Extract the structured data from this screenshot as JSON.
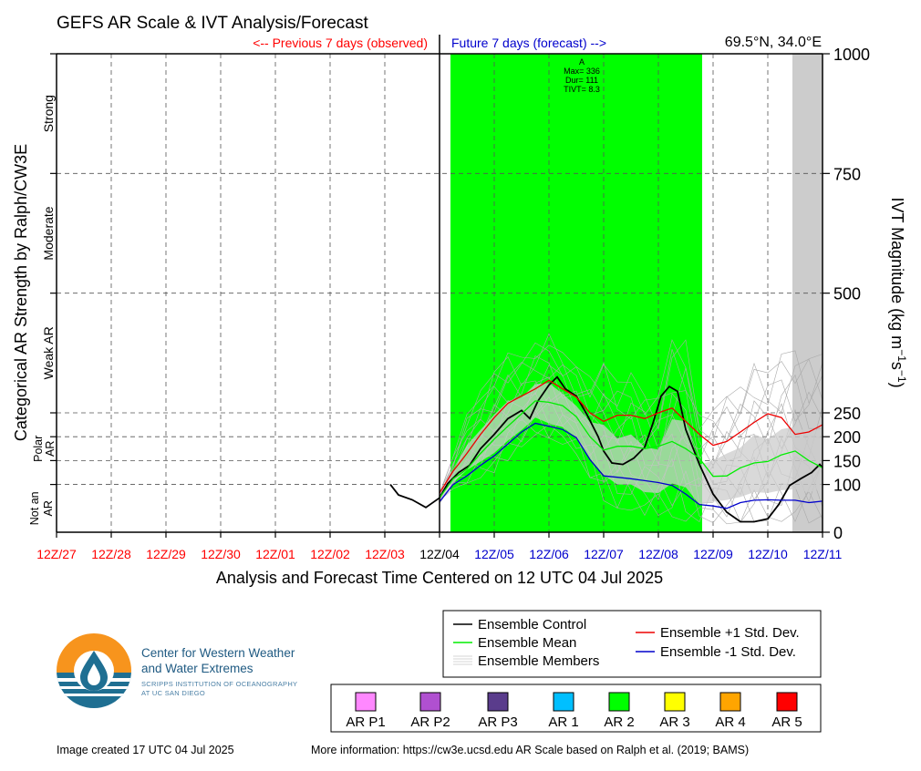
{
  "chart_data": {
    "type": "line",
    "title": "GEFS AR Scale & IVT Analysis/Forecast",
    "location": "69.5°N, 34.0°E",
    "previous_label": "<-- Previous 7 days (observed)",
    "future_label": "Future 7 days (forecast) -->",
    "xlabel": "Analysis and Forecast Time Centered on 12 UTC 04 Jul 2025",
    "ylabel_left": "Categorical AR Strength by Ralph/CW3E",
    "ylabel_right": "IVT Magnitude (kg m",
    "ylabel_right_sup1": "−1",
    "ylabel_right_mid": "s",
    "ylabel_right_sup2": "−1",
    "ylabel_right_end": ")",
    "x_ticks": [
      {
        "label": "12Z/27",
        "day": -7,
        "color": "#ff0000"
      },
      {
        "label": "12Z/28",
        "day": -6,
        "color": "#ff0000"
      },
      {
        "label": "12Z/29",
        "day": -5,
        "color": "#ff0000"
      },
      {
        "label": "12Z/30",
        "day": -4,
        "color": "#ff0000"
      },
      {
        "label": "12Z/01",
        "day": -3,
        "color": "#ff0000"
      },
      {
        "label": "12Z/02",
        "day": -2,
        "color": "#ff0000"
      },
      {
        "label": "12Z/03",
        "day": -1,
        "color": "#ff0000"
      },
      {
        "label": "12Z/04",
        "day": 0,
        "color": "#000000"
      },
      {
        "label": "12Z/05",
        "day": 1,
        "color": "#0000cc"
      },
      {
        "label": "12Z/06",
        "day": 2,
        "color": "#0000cc"
      },
      {
        "label": "12Z/07",
        "day": 3,
        "color": "#0000cc"
      },
      {
        "label": "12Z/08",
        "day": 4,
        "color": "#0000cc"
      },
      {
        "label": "12Z/09",
        "day": 5,
        "color": "#0000cc"
      },
      {
        "label": "12Z/10",
        "day": 6,
        "color": "#0000cc"
      },
      {
        "label": "12Z/11",
        "day": 7,
        "color": "#0000cc"
      }
    ],
    "xlim": [
      -7,
      7
    ],
    "ylim": [
      0,
      1000
    ],
    "y_ticks": [
      0,
      100,
      150,
      200,
      250,
      500,
      750,
      1000
    ],
    "categories": [
      {
        "label": "Strong",
        "y": 875
      },
      {
        "label": "Moderate",
        "y": 625
      },
      {
        "label": "Weak AR",
        "y": 375
      },
      {
        "label": "Polar AR",
        "y": 175
      },
      {
        "label": "Not an",
        "label2": "AR",
        "y": 50
      }
    ],
    "ar_events": [
      {
        "category": "AR 2",
        "start_day": 0.2,
        "end_day": 4.8,
        "color": "#00ff00"
      },
      {
        "category": "unshaded",
        "start_day": 6.45,
        "end_day": 7.0,
        "color": "#cccccc"
      }
    ],
    "ar_annotation": {
      "letter": "A",
      "max": "Max= 336",
      "dur": "Dur= 111",
      "tivt": "TIVT= 8.3"
    },
    "series": [
      {
        "name": "Ensemble Control",
        "color": "#000000",
        "x": [
          -0.9,
          -0.75,
          -0.5,
          -0.25,
          0.0,
          0.15,
          0.35,
          0.55,
          0.75,
          1.0,
          1.25,
          1.5,
          1.65,
          1.8,
          2.0,
          2.15,
          2.3,
          2.5,
          2.7,
          2.9,
          3.0,
          3.15,
          3.35,
          3.55,
          3.75,
          3.9,
          4.05,
          4.2,
          4.35,
          4.5,
          4.75,
          5.0,
          5.25,
          5.5,
          5.75,
          6.0,
          6.2,
          6.4,
          6.6,
          6.8,
          6.95,
          7.0
        ],
        "y": [
          100,
          78,
          68,
          52,
          72,
          102,
          125,
          140,
          175,
          205,
          238,
          255,
          238,
          275,
          308,
          325,
          300,
          285,
          245,
          200,
          170,
          145,
          142,
          155,
          178,
          228,
          285,
          305,
          295,
          215,
          142,
          80,
          42,
          22,
          22,
          28,
          58,
          98,
          112,
          125,
          142,
          135
        ]
      },
      {
        "name": "Ensemble Mean",
        "color": "#00ee00",
        "x": [
          0.0,
          0.25,
          0.5,
          0.75,
          1.0,
          1.25,
          1.5,
          1.75,
          2.0,
          2.25,
          2.5,
          2.75,
          3.0,
          3.25,
          3.5,
          3.75,
          4.0,
          4.25,
          4.5,
          4.75,
          5.0,
          5.25,
          5.5,
          5.75,
          6.0,
          6.25,
          6.5,
          6.75,
          7.0
        ],
        "y": [
          72,
          112,
          132,
          165,
          195,
          222,
          248,
          275,
          272,
          265,
          242,
          200,
          172,
          180,
          180,
          175,
          180,
          190,
          175,
          155,
          117,
          118,
          135,
          145,
          148,
          162,
          170,
          150,
          135
        ]
      },
      {
        "name": "Ensemble +1 Std. Dev.",
        "color": "#ee0000",
        "x": [
          0.0,
          0.25,
          0.5,
          0.75,
          1.0,
          1.25,
          1.5,
          1.75,
          2.0,
          2.25,
          2.5,
          2.75,
          3.0,
          3.25,
          3.5,
          3.75,
          4.0,
          4.25,
          4.5,
          4.75,
          5.0,
          5.25,
          5.5,
          5.75,
          6.0,
          6.25,
          6.5,
          6.75,
          7.0
        ],
        "y": [
          82,
          128,
          165,
          205,
          240,
          270,
          285,
          300,
          318,
          300,
          283,
          250,
          232,
          245,
          245,
          238,
          250,
          260,
          232,
          205,
          182,
          190,
          210,
          230,
          248,
          240,
          205,
          210,
          225
        ]
      },
      {
        "name": "Ensemble -1 Std. Dev.",
        "color": "#0000cc",
        "x": [
          0.0,
          0.25,
          0.5,
          0.75,
          1.0,
          1.25,
          1.5,
          1.75,
          2.0,
          2.25,
          2.5,
          2.75,
          3.0,
          3.25,
          3.5,
          3.75,
          4.0,
          4.25,
          4.5,
          4.75,
          5.0,
          5.25,
          5.5,
          5.75,
          6.0,
          6.25,
          6.5,
          6.75,
          7.0
        ],
        "y": [
          64,
          100,
          118,
          140,
          160,
          185,
          210,
          228,
          222,
          215,
          198,
          152,
          118,
          115,
          112,
          108,
          104,
          98,
          80,
          58,
          55,
          50,
          62,
          67,
          68,
          67,
          67,
          62,
          65
        ]
      }
    ],
    "members_band": {
      "name": "Ensemble Members",
      "color": "#aaaaaa",
      "x": [
        0.0,
        0.25,
        0.5,
        0.75,
        1.0,
        1.25,
        1.5,
        1.75,
        2.0,
        2.25,
        2.5,
        2.75,
        3.0,
        3.25,
        3.5,
        3.75,
        4.0,
        4.25,
        4.5,
        4.75,
        5.0,
        5.25,
        5.5,
        5.75,
        6.0,
        6.25,
        6.5,
        6.75,
        7.0
      ],
      "upper": [
        85,
        160,
        250,
        300,
        350,
        380,
        370,
        400,
        420,
        380,
        350,
        330,
        360,
        320,
        340,
        300,
        290,
        410,
        410,
        250,
        260,
        290,
        310,
        360,
        340,
        380,
        390,
        370,
        380
      ],
      "lower": [
        60,
        90,
        100,
        110,
        120,
        145,
        175,
        200,
        180,
        180,
        160,
        110,
        60,
        45,
        40,
        30,
        30,
        25,
        15,
        10,
        15,
        12,
        15,
        15,
        18,
        15,
        15,
        12,
        20
      ]
    }
  },
  "legend": {
    "control": "Ensemble Control",
    "mean": "Ensemble Mean",
    "members": "Ensemble Members",
    "plus": "Ensemble +1 Std. Dev.",
    "minus": "Ensemble -1 Std. Dev."
  },
  "ar_scale": [
    {
      "label": "AR P1",
      "color": "#ff88ff"
    },
    {
      "label": "AR P2",
      "color": "#b050d0"
    },
    {
      "label": "AR P3",
      "color": "#5a3c8c"
    },
    {
      "label": "AR 1",
      "color": "#00bfff"
    },
    {
      "label": "AR 2",
      "color": "#00ff00"
    },
    {
      "label": "AR 3",
      "color": "#ffff00"
    },
    {
      "label": "AR 4",
      "color": "#ffa500"
    },
    {
      "label": "AR 5",
      "color": "#ff0000"
    }
  ],
  "logo": {
    "line1": "Center for Western Weather",
    "line2": "and Water Extremes",
    "line3": "SCRIPPS INSTITUTION OF OCEANOGRAPHY",
    "line4": "AT UC SAN DIEGO"
  },
  "footer": {
    "created": "Image created 17 UTC 04 Jul 2025",
    "more_info": "More information: https://cw3e.ucsd.edu AR Scale based on Ralph et al. (2019; BAMS)"
  }
}
